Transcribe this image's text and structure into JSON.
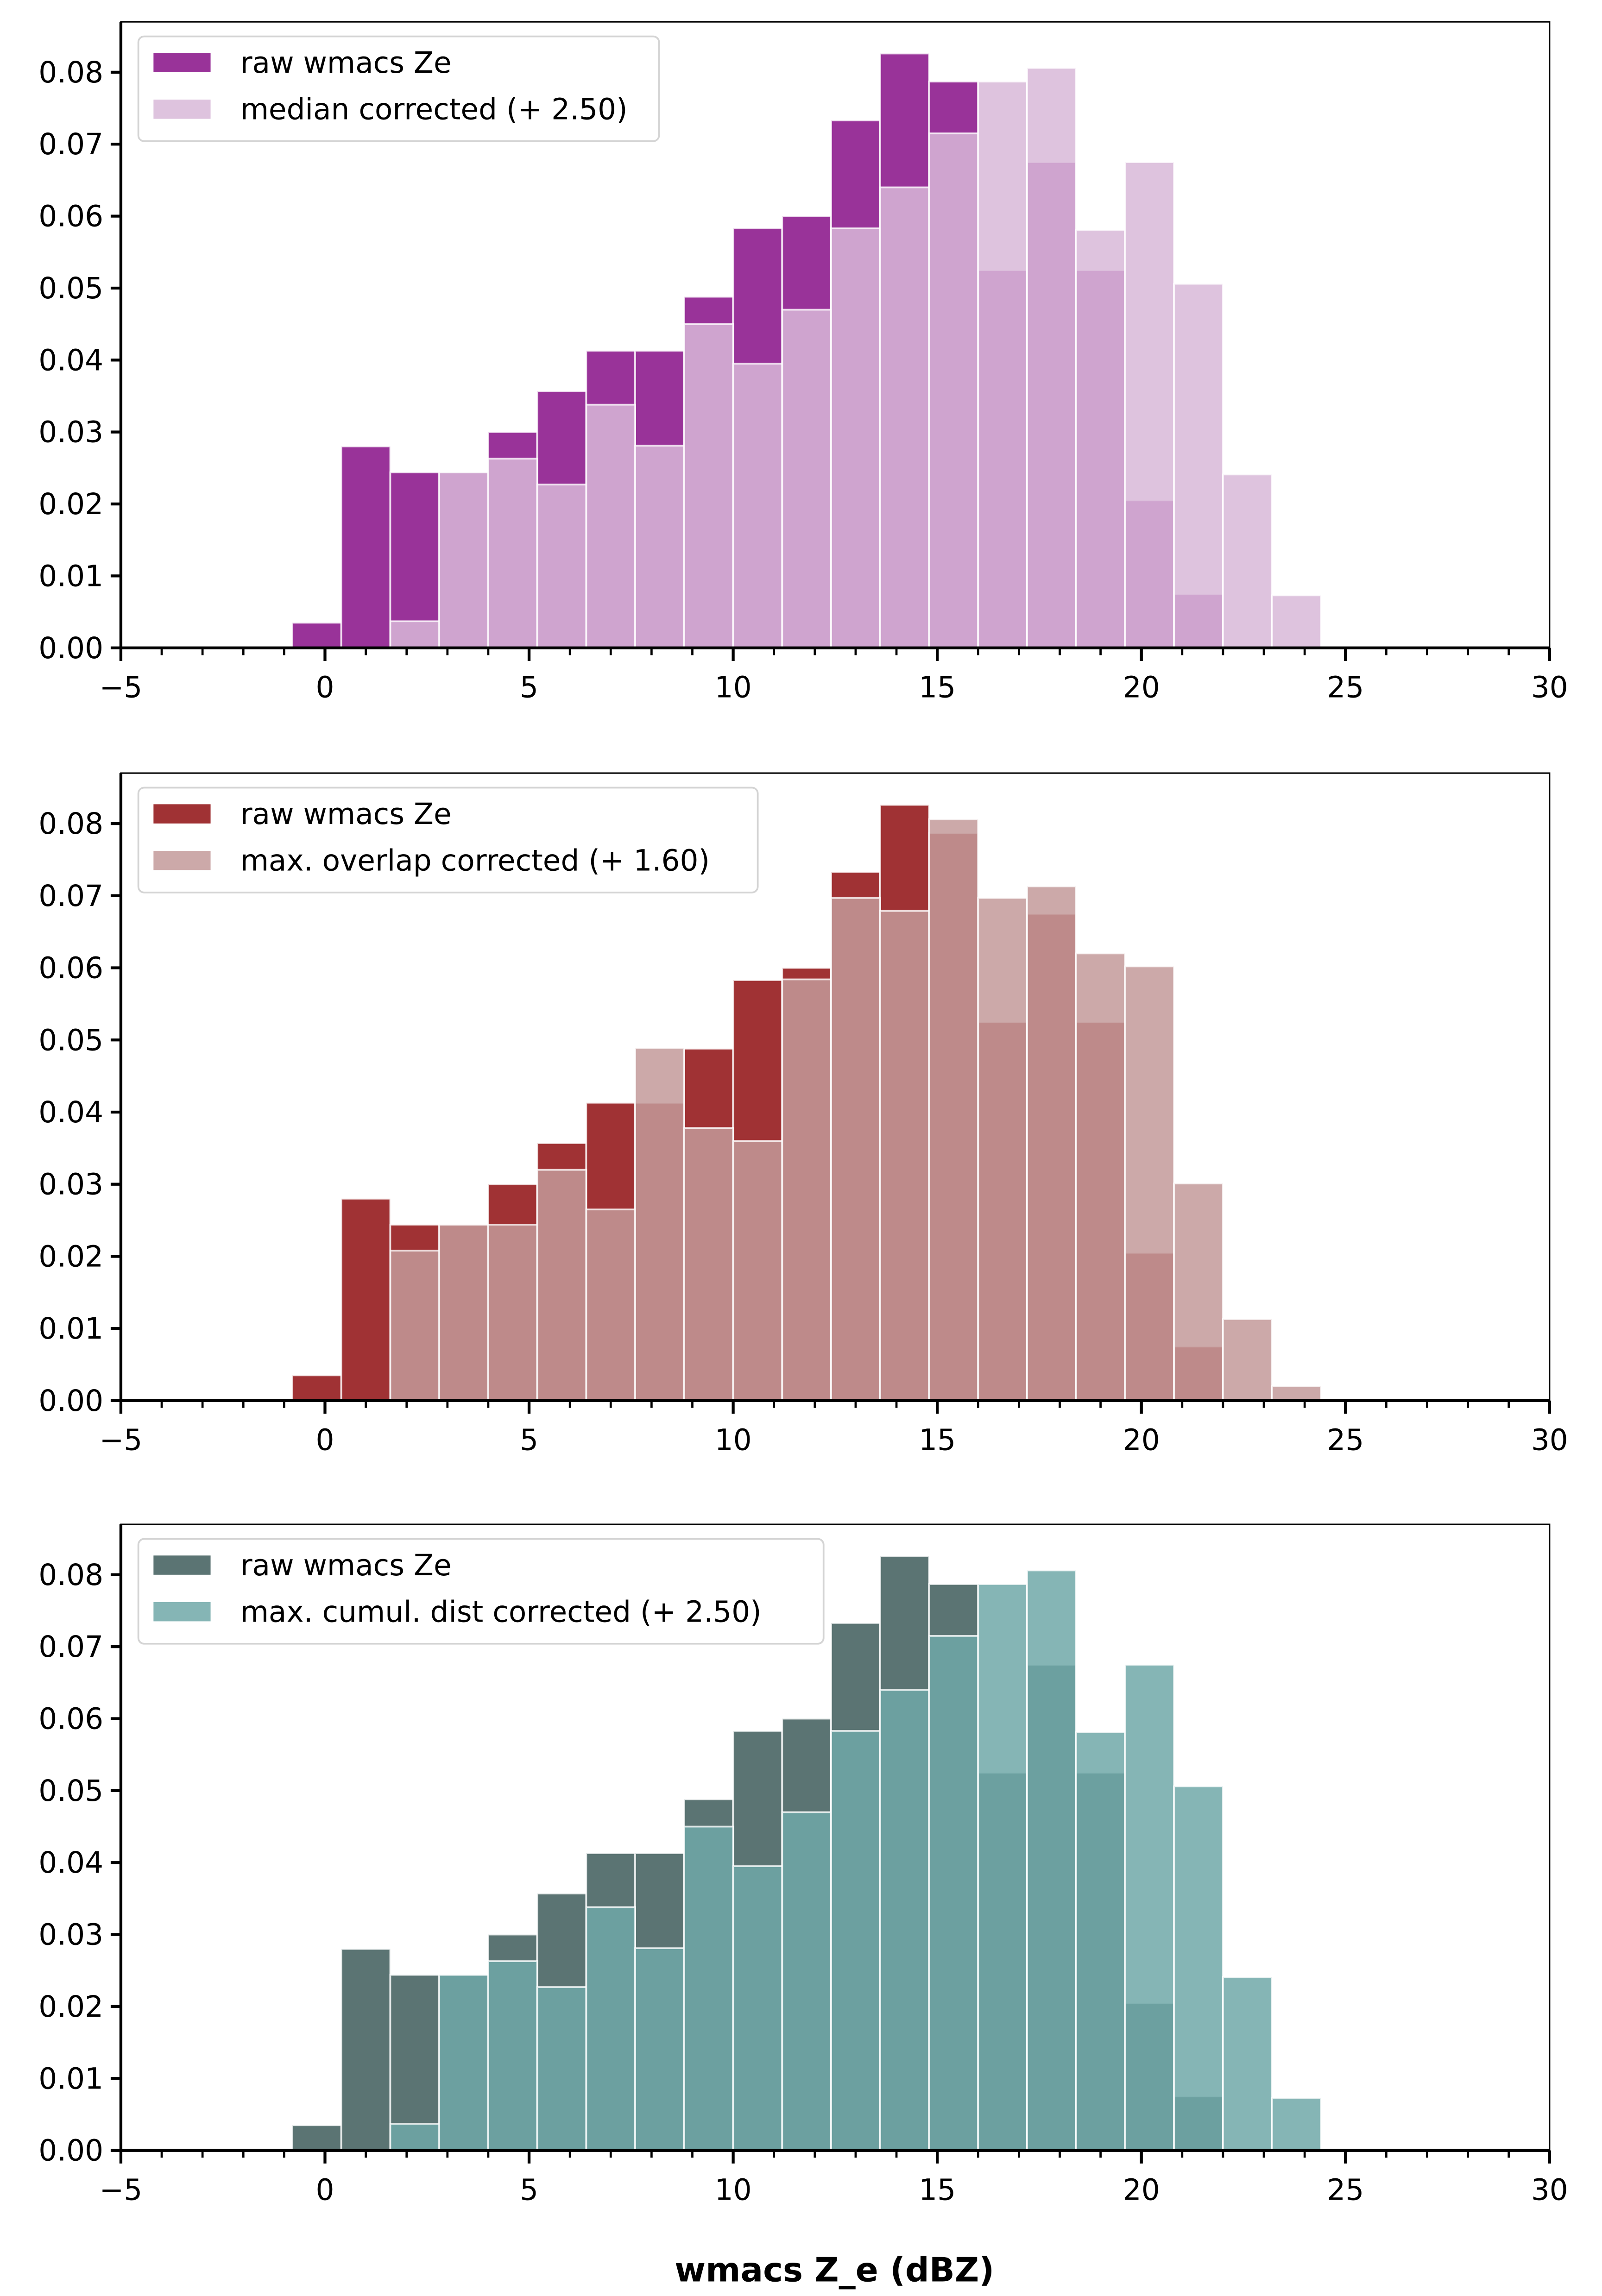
{
  "chart_data": [
    {
      "type": "bar",
      "subtype": "overlaid-histogram",
      "title": "",
      "xlabel": "",
      "ylabel": "",
      "xlim": [
        -5,
        30
      ],
      "ylim": [
        0,
        0.087
      ],
      "x_ticks": [
        -5,
        0,
        5,
        10,
        15,
        20,
        25,
        30
      ],
      "x_tick_labels": [
        "−5",
        "0",
        "5",
        "10",
        "15",
        "20",
        "25",
        "30"
      ],
      "y_ticks": [
        0,
        0.01,
        0.02,
        0.03,
        0.04,
        0.05,
        0.06,
        0.07,
        0.08
      ],
      "y_tick_labels": [
        "0.00",
        "0.01",
        "0.02",
        "0.03",
        "0.04",
        "0.05",
        "0.06",
        "0.07",
        "0.08"
      ],
      "legend_position": "top-left",
      "bin_edges_start": -0.8,
      "bin_width": 1.2,
      "series": [
        {
          "name": "raw wmacs Ze",
          "color": "#993399",
          "alpha": 1.0,
          "bin_starts": [
            -0.8,
            0.4,
            1.6,
            2.8,
            4.0,
            5.2,
            6.4,
            7.6,
            8.8,
            10.0,
            11.2,
            12.4,
            13.6,
            14.8,
            16.0,
            17.2,
            18.4,
            19.6,
            20.8
          ],
          "values": [
            0.0035,
            0.028,
            0.0244,
            0.0244,
            0.03,
            0.0357,
            0.0413,
            0.0413,
            0.0488,
            0.0583,
            0.06,
            0.0733,
            0.0826,
            0.0787,
            0.0525,
            0.0675,
            0.0525,
            0.0205,
            0.0075
          ]
        },
        {
          "name": "median corrected (+ 2.50)",
          "color": "#d8b8d8",
          "alpha": 0.85,
          "bin_starts": [
            1.6,
            2.8,
            4.0,
            5.2,
            6.4,
            7.6,
            8.8,
            10.0,
            11.2,
            12.4,
            13.6,
            14.8,
            16.0,
            17.2,
            18.4,
            19.6,
            20.8,
            22.0,
            23.2
          ],
          "values": [
            0.0037,
            0.0244,
            0.0263,
            0.0227,
            0.0338,
            0.0281,
            0.045,
            0.0395,
            0.047,
            0.0583,
            0.064,
            0.0715,
            0.0787,
            0.0806,
            0.0581,
            0.0675,
            0.0506,
            0.0241,
            0.0073
          ]
        }
      ]
    },
    {
      "type": "bar",
      "subtype": "overlaid-histogram",
      "title": "",
      "xlabel": "",
      "ylabel": "",
      "xlim": [
        -5,
        30
      ],
      "ylim": [
        0,
        0.087
      ],
      "x_ticks": [
        -5,
        0,
        5,
        10,
        15,
        20,
        25,
        30
      ],
      "x_tick_labels": [
        "−5",
        "0",
        "5",
        "10",
        "15",
        "20",
        "25",
        "30"
      ],
      "y_ticks": [
        0,
        0.01,
        0.02,
        0.03,
        0.04,
        0.05,
        0.06,
        0.07,
        0.08
      ],
      "y_tick_labels": [
        "0.00",
        "0.01",
        "0.02",
        "0.03",
        "0.04",
        "0.05",
        "0.06",
        "0.07",
        "0.08"
      ],
      "legend_position": "top-left",
      "bin_edges_start": -0.8,
      "bin_width": 1.2,
      "series": [
        {
          "name": "raw wmacs Ze",
          "color": "#a03234",
          "alpha": 1.0,
          "bin_starts": [
            -0.8,
            0.4,
            1.6,
            2.8,
            4.0,
            5.2,
            6.4,
            7.6,
            8.8,
            10.0,
            11.2,
            12.4,
            13.6,
            14.8,
            16.0,
            17.2,
            18.4,
            19.6,
            20.8
          ],
          "values": [
            0.0035,
            0.028,
            0.0244,
            0.0244,
            0.03,
            0.0357,
            0.0413,
            0.0413,
            0.0488,
            0.0583,
            0.06,
            0.0733,
            0.0826,
            0.0787,
            0.0525,
            0.0675,
            0.0525,
            0.0205,
            0.0075
          ]
        },
        {
          "name": "max. overlap corrected (+ 1.60)",
          "color": "#c39a9a",
          "alpha": 0.85,
          "bin_starts": [
            1.6,
            2.8,
            4.0,
            5.2,
            6.4,
            7.6,
            8.8,
            10.0,
            11.2,
            12.4,
            13.6,
            14.8,
            16.0,
            17.2,
            18.4,
            19.6,
            20.8,
            22.0,
            23.2
          ],
          "values": [
            0.0208,
            0.0244,
            0.0244,
            0.032,
            0.0265,
            0.0489,
            0.0378,
            0.036,
            0.0584,
            0.0697,
            0.0679,
            0.0806,
            0.0697,
            0.0713,
            0.062,
            0.0602,
            0.0301,
            0.0113,
            0.002
          ]
        }
      ]
    },
    {
      "type": "bar",
      "subtype": "overlaid-histogram",
      "title": "",
      "xlabel": "wmacs Z_e (dBZ)",
      "ylabel": "",
      "xlim": [
        -5,
        30
      ],
      "ylim": [
        0,
        0.087
      ],
      "x_ticks": [
        -5,
        0,
        5,
        10,
        15,
        20,
        25,
        30
      ],
      "x_tick_labels": [
        "−5",
        "0",
        "5",
        "10",
        "15",
        "20",
        "25",
        "30"
      ],
      "y_ticks": [
        0,
        0.01,
        0.02,
        0.03,
        0.04,
        0.05,
        0.06,
        0.07,
        0.08
      ],
      "y_tick_labels": [
        "0.00",
        "0.01",
        "0.02",
        "0.03",
        "0.04",
        "0.05",
        "0.06",
        "0.07",
        "0.08"
      ],
      "legend_position": "top-left",
      "bin_edges_start": -0.8,
      "bin_width": 1.2,
      "series": [
        {
          "name": "raw wmacs Ze",
          "color": "#5b7473",
          "alpha": 1.0,
          "bin_starts": [
            -0.8,
            0.4,
            1.6,
            2.8,
            4.0,
            5.2,
            6.4,
            7.6,
            8.8,
            10.0,
            11.2,
            12.4,
            13.6,
            14.8,
            16.0,
            17.2,
            18.4,
            19.6,
            20.8
          ],
          "values": [
            0.0035,
            0.028,
            0.0244,
            0.0244,
            0.03,
            0.0357,
            0.0413,
            0.0413,
            0.0488,
            0.0583,
            0.06,
            0.0733,
            0.0826,
            0.0787,
            0.0525,
            0.0675,
            0.0525,
            0.0205,
            0.0075
          ]
        },
        {
          "name": "max. cumul. dist corrected (+ 2.50)",
          "color": "#70a8a8",
          "alpha": 0.85,
          "bin_starts": [
            1.6,
            2.8,
            4.0,
            5.2,
            6.4,
            7.6,
            8.8,
            10.0,
            11.2,
            12.4,
            13.6,
            14.8,
            16.0,
            17.2,
            18.4,
            19.6,
            20.8,
            22.0,
            23.2
          ],
          "values": [
            0.0037,
            0.0244,
            0.0263,
            0.0227,
            0.0338,
            0.0281,
            0.045,
            0.0395,
            0.047,
            0.0583,
            0.064,
            0.0715,
            0.0787,
            0.0806,
            0.0581,
            0.0675,
            0.0506,
            0.0241,
            0.0073
          ]
        }
      ]
    }
  ]
}
